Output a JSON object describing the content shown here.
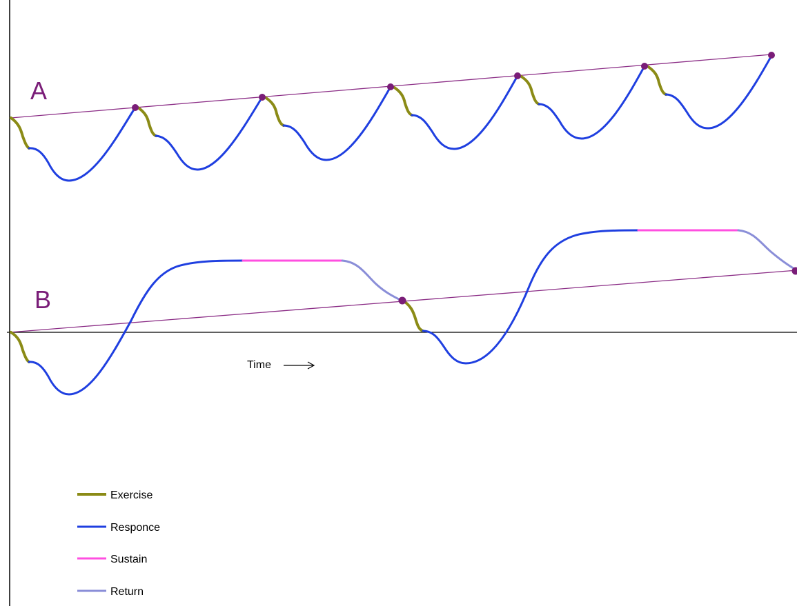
{
  "labels": {
    "panel_a": "A",
    "panel_b": "B",
    "time_axis": "Time",
    "time_arrow": "⟶"
  },
  "legend": [
    {
      "key": "exercise",
      "label": "Exercise",
      "color": "#8b8b16"
    },
    {
      "key": "response",
      "label": "Responce",
      "color": "#1f3fe0"
    },
    {
      "key": "sustain",
      "label": "Sustain",
      "color": "#ff4fe0"
    },
    {
      "key": "return",
      "label": "Return",
      "color": "#8a8ed8"
    }
  ],
  "colors": {
    "axis": "#000000",
    "trend_line": "#8b2d86",
    "marker": "#7a1d78",
    "panel_label": "#7a1d78"
  },
  "panels": {
    "a": {
      "description_cycles": 6
    },
    "b": {
      "description_cycles": 2
    }
  }
}
